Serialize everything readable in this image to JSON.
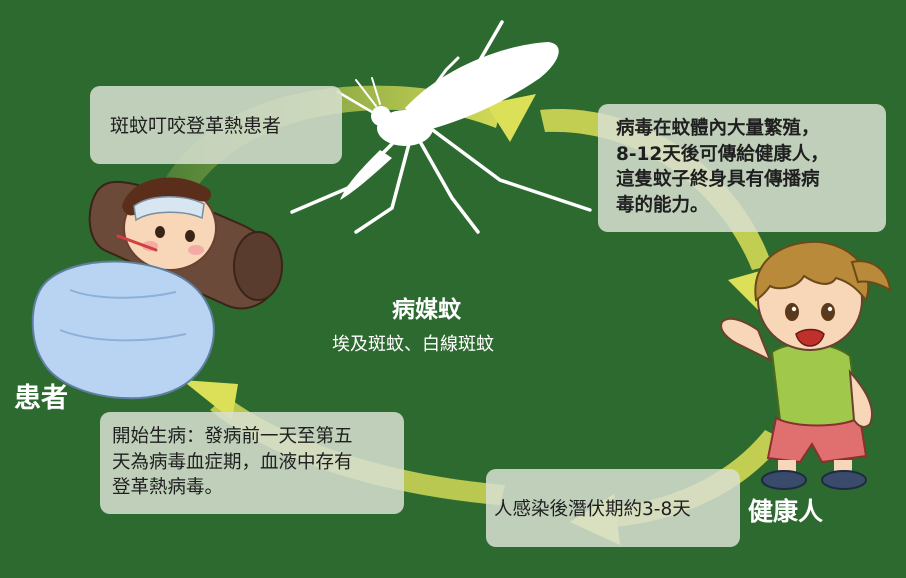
{
  "colors": {
    "background": "#2d6a2f",
    "arrow": "#ebea5c",
    "box": "#d7e0d0",
    "text_dark": "#1f1f1f",
    "label_light": "#ffffff"
  },
  "icons": [
    "mosquito-icon",
    "sick-patient-icon",
    "healthy-child-icon",
    "cycle-arrow-icon"
  ],
  "labels": {
    "patient": "患者",
    "healthy": "健康人",
    "vector": "病媒蚊",
    "vector_species": "埃及斑蚊、白線斑蚊"
  },
  "steps": {
    "bite": [
      "斑蚊叮咬登革熱患者"
    ],
    "virus": [
      "病毒在蚊體內大量繁殖，",
      "8-12天後可傳給健康人，",
      "這隻蚊子終身具有傳播病",
      "毒的能力。"
    ],
    "incubation": [
      "人感染後潛伏期約3-8天"
    ],
    "onset": [
      "開始生病：發病前一天至第五",
      "天為病毒血症期，血液中存有",
      "登革熱病毒。"
    ]
  }
}
